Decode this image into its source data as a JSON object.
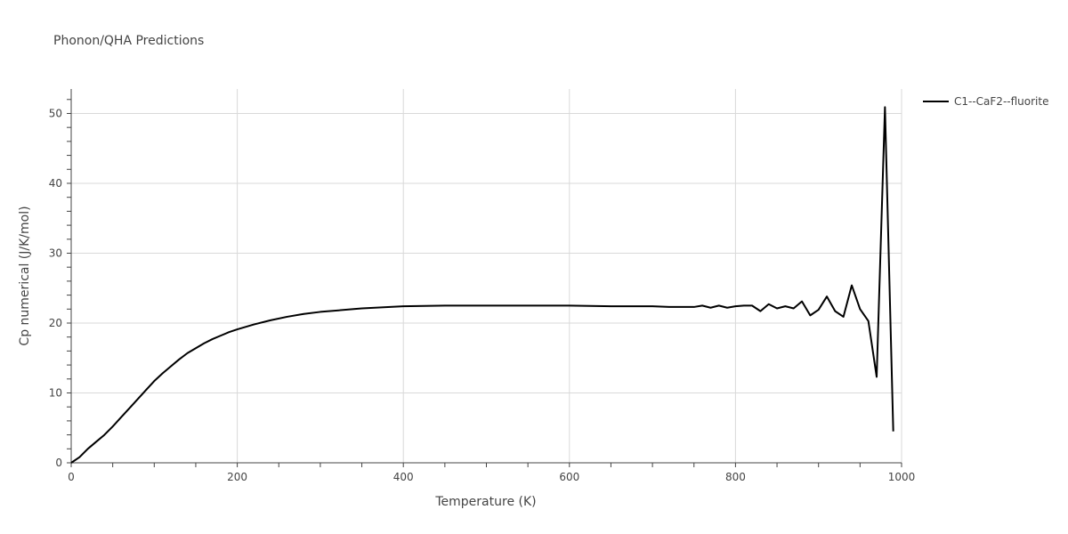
{
  "chart_data": {
    "type": "line",
    "title": "Phonon/QHA Predictions",
    "xlabel": "Temperature (K)",
    "ylabel": "Cp numerical (J/K/mol)",
    "xlim": [
      0,
      1000
    ],
    "ylim": [
      0,
      53.5
    ],
    "x_ticks": [
      0,
      200,
      400,
      600,
      800,
      1000
    ],
    "y_ticks": [
      0,
      10,
      20,
      30,
      40,
      50
    ],
    "x_minor_step": 50,
    "y_minor_step": 2,
    "grid": true,
    "legend_position": "top-right",
    "series": [
      {
        "name": "C1--CaF2--fluorite",
        "color": "#000000",
        "x": [
          0,
          10,
          20,
          30,
          40,
          50,
          60,
          70,
          80,
          90,
          100,
          110,
          120,
          130,
          140,
          150,
          160,
          170,
          180,
          190,
          200,
          220,
          240,
          260,
          280,
          300,
          350,
          400,
          450,
          500,
          550,
          600,
          650,
          700,
          720,
          730,
          740,
          750,
          760,
          770,
          780,
          790,
          800,
          810,
          820,
          830,
          840,
          850,
          860,
          870,
          880,
          890,
          900,
          910,
          920,
          930,
          940,
          950,
          960,
          970,
          980,
          990
        ],
        "y": [
          0,
          0.8,
          2.0,
          3.0,
          4.0,
          5.2,
          6.5,
          7.8,
          9.1,
          10.4,
          11.7,
          12.8,
          13.8,
          14.8,
          15.7,
          16.4,
          17.1,
          17.7,
          18.2,
          18.7,
          19.1,
          19.8,
          20.4,
          20.9,
          21.3,
          21.6,
          22.1,
          22.4,
          22.5,
          22.5,
          22.5,
          22.5,
          22.4,
          22.4,
          22.3,
          22.3,
          22.3,
          22.3,
          22.5,
          22.2,
          22.5,
          22.2,
          22.4,
          22.5,
          22.5,
          21.7,
          22.7,
          22.1,
          22.4,
          22.1,
          23.1,
          21.1,
          21.9,
          23.8,
          21.7,
          20.9,
          25.4,
          22.0,
          20.3,
          12.3,
          50.9,
          4.5
        ]
      }
    ]
  }
}
